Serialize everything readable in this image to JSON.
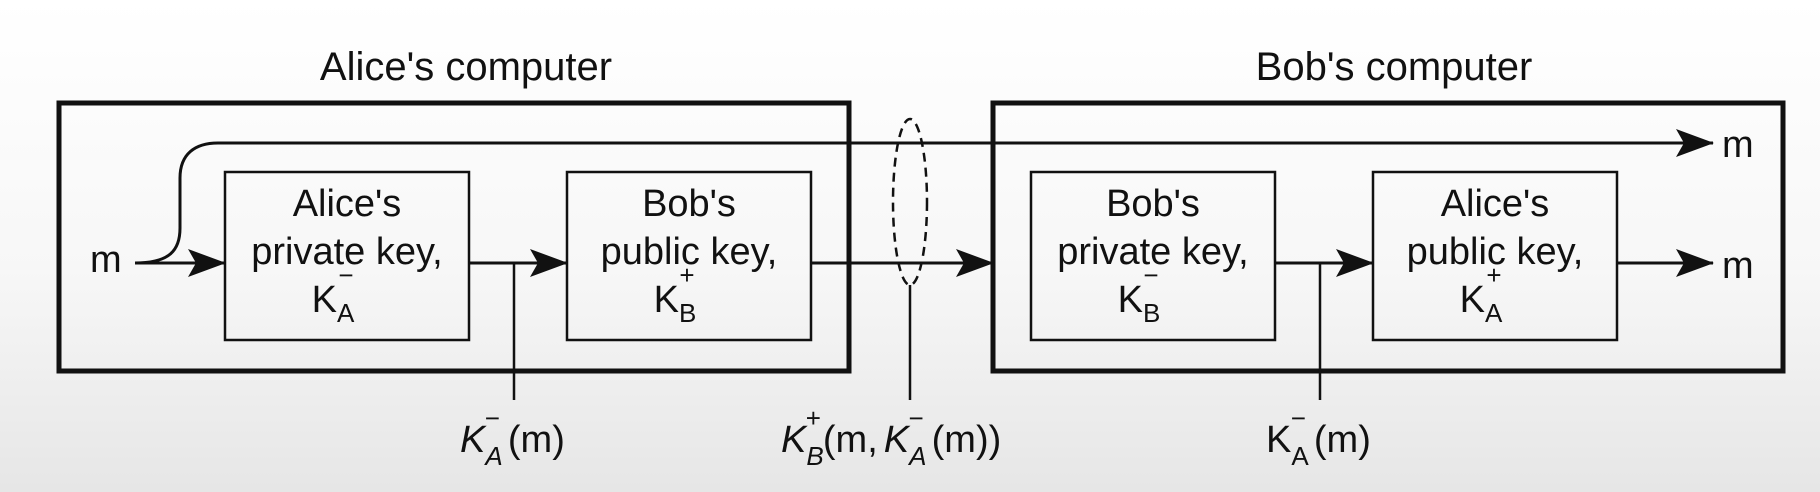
{
  "alice_computer": {
    "title": "Alice's computer",
    "input_m": "m",
    "box1": {
      "line1": "Alice's",
      "line2": "private key,",
      "key": "K",
      "sub": "A",
      "sup": "−"
    },
    "box2": {
      "line1": "Bob's",
      "line2": "public key,",
      "key": "K",
      "sub": "B",
      "sup": "+"
    }
  },
  "bob_computer": {
    "title": "Bob's computer",
    "output_m_top": "m",
    "output_m": "m",
    "box3": {
      "line1": "Bob's",
      "line2": "private key,",
      "key": "K",
      "sub": "B",
      "sup": "−"
    },
    "box4": {
      "line1": "Alice's",
      "line2": "public key,",
      "key": "K",
      "sub": "A",
      "sup": "+"
    }
  },
  "labels": {
    "left": {
      "key": "K",
      "sub": "A",
      "sup": "−",
      "arg": "(m)"
    },
    "middle": {
      "key": "K",
      "sub": "B",
      "sup": "+",
      "arg_open": "(m,",
      "inner_key": "K",
      "inner_sub": "A",
      "inner_sup": "−",
      "arg_close": "(m))"
    },
    "right": {
      "key": "K",
      "sub": "A",
      "sup": "−",
      "arg": "(m)"
    }
  }
}
